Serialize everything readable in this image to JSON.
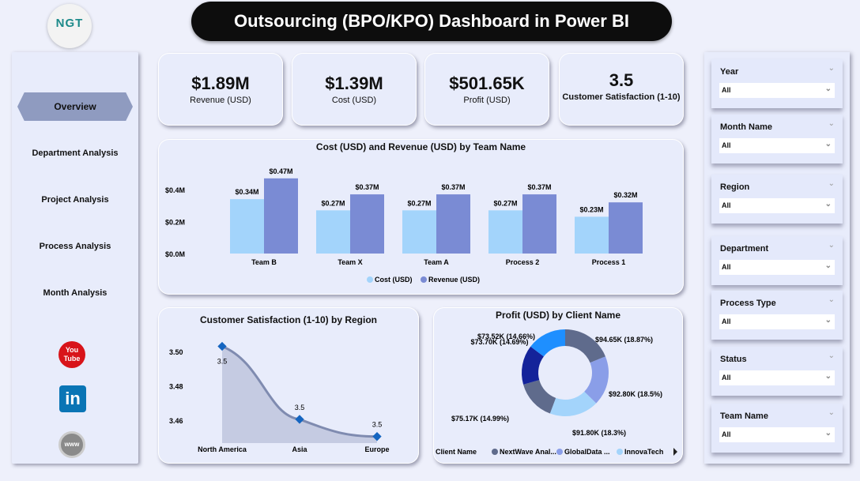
{
  "header": {
    "logo_text": "NGT",
    "title": "Outsourcing (BPO/KPO) Dashboard in Power BI"
  },
  "nav": {
    "items": [
      {
        "label": "Overview",
        "active": true
      },
      {
        "label": "Department Analysis"
      },
      {
        "label": "Project Analysis"
      },
      {
        "label": "Process Analysis"
      },
      {
        "label": "Month Analysis"
      }
    ],
    "social": [
      {
        "icon": "youtube-icon",
        "label": "You Tube"
      },
      {
        "icon": "linkedin-icon",
        "label": "in"
      },
      {
        "icon": "globe-icon",
        "label": "www"
      }
    ]
  },
  "kpis": [
    {
      "value": "$1.89M",
      "label": "Revenue (USD)"
    },
    {
      "value": "$1.39M",
      "label": "Cost (USD)"
    },
    {
      "value": "$501.65K",
      "label": "Profit (USD)"
    },
    {
      "value": "3.5",
      "label": "Customer Satisfaction (1-10)"
    }
  ],
  "slicers": [
    {
      "label": "Year",
      "value": "All"
    },
    {
      "label": "Month Name",
      "value": "All"
    },
    {
      "label": "Region",
      "value": "All"
    },
    {
      "label": "Department",
      "value": "All"
    },
    {
      "label": "Process Type",
      "value": "All"
    },
    {
      "label": "Status",
      "value": "All"
    },
    {
      "label": "Team Name",
      "value": "All"
    }
  ],
  "chart_data": [
    {
      "type": "bar",
      "title": "Cost (USD) and Revenue (USD) by Team Name",
      "categories": [
        "Team B",
        "Team X",
        "Team A",
        "Process 2",
        "Process 1"
      ],
      "series": [
        {
          "name": "Cost (USD)",
          "color": "#a3d4fb",
          "values": [
            0.34,
            0.27,
            0.27,
            0.27,
            0.23
          ],
          "labels": [
            "$0.34M",
            "$0.27M",
            "$0.27M",
            "$0.27M",
            "$0.23M"
          ]
        },
        {
          "name": "Revenue (USD)",
          "color": "#7a8bd4",
          "values": [
            0.47,
            0.37,
            0.37,
            0.37,
            0.32
          ],
          "labels": [
            "$0.47M",
            "$0.37M",
            "$0.37M",
            "$0.37M",
            "$0.32M"
          ]
        }
      ],
      "yticks": [
        "$0.0M",
        "$0.2M",
        "$0.4M"
      ],
      "ylim": [
        0,
        0.5
      ],
      "legend": "bottom"
    },
    {
      "type": "area",
      "title": "Customer Satisfaction (1-10) by Region",
      "categories": [
        "North America",
        "Asia",
        "Europe"
      ],
      "values": [
        3.503,
        3.4605,
        3.4505
      ],
      "labels": [
        "3.5",
        "3.5",
        "3.5"
      ],
      "yticks": [
        "3.46",
        "3.48",
        "3.50"
      ],
      "ylim": [
        3.443,
        3.52
      ],
      "color": "#7f8bb0",
      "marker": "#1565c0"
    },
    {
      "type": "pie",
      "title": "Profit (USD) by Client Name",
      "donut": true,
      "values": [
        94.65,
        92.8,
        91.8,
        75.17,
        73.7,
        73.52
      ],
      "labels": [
        "$94.65K (18.87%)",
        "$92.80K (18.5%)",
        "$91.80K (18.3%)",
        "$75.17K (14.99%)",
        "$73.70K (14.69%)",
        "$73.52K (14.66%)"
      ],
      "colors": [
        "#5f6b8c",
        "#8a9ee8",
        "#a3d4fb",
        "#5f6b8c",
        "#14239a",
        "#1e8fff"
      ],
      "legend_title": "Client Name",
      "legend": [
        {
          "name": "NextWave Anal...",
          "color": "#5f6b8c"
        },
        {
          "name": "GlobalData ...",
          "color": "#8a9ee8"
        },
        {
          "name": "InnovaTech",
          "color": "#a3d4fb"
        }
      ]
    }
  ]
}
